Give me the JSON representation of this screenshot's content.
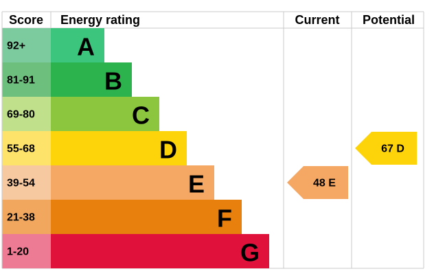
{
  "header": {
    "score": "Score",
    "rating": "Energy rating",
    "current": "Current",
    "potential": "Potential"
  },
  "rows": [
    {
      "score": "92+",
      "rating": "A",
      "color": "#3cc67d",
      "light": "#7ccb9f"
    },
    {
      "score": "81-91",
      "rating": "B",
      "color": "#2db34d",
      "light": "#6dbf7e"
    },
    {
      "score": "69-80",
      "rating": "C",
      "color": "#8cc63f",
      "light": "#c0e08b"
    },
    {
      "score": "55-68",
      "rating": "D",
      "color": "#fdd30a",
      "light": "#fde36a"
    },
    {
      "score": "39-54",
      "rating": "E",
      "color": "#f4a864",
      "light": "#f7c9a0"
    },
    {
      "score": "21-38",
      "rating": "F",
      "color": "#e8800e",
      "light": "#f1a85e"
    },
    {
      "score": "1-20",
      "rating": "G",
      "color": "#e0123c",
      "light": "#ec7b93"
    }
  ],
  "current": {
    "label": "48 E",
    "color": "#f4a864"
  },
  "potential": {
    "label": "67 D",
    "color": "#fdd30a"
  }
}
